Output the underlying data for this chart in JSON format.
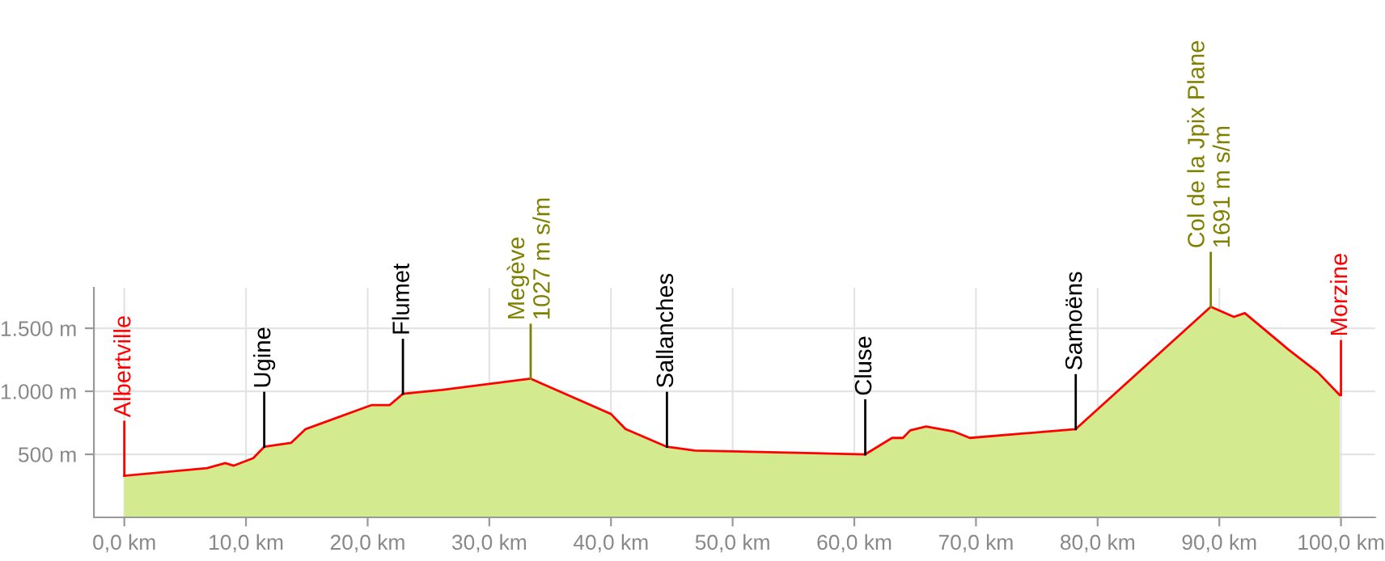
{
  "chart_data": {
    "type": "area",
    "x": [
      0,
      6.8,
      8.3,
      9.0,
      10.6,
      11.5,
      13.7,
      14.9,
      20.3,
      21.8,
      22.9,
      26.1,
      33.4,
      40.0,
      41.2,
      44.6,
      46.9,
      60.9,
      63.1,
      64.0,
      64.6,
      65.9,
      68.2,
      69.5,
      78.2,
      89.3,
      91.2,
      92.1,
      95.7,
      98.1,
      99.9
    ],
    "series": [
      {
        "color": "#d3ea8e",
        "values": [
          330,
          390,
          430,
          410,
          470,
          560,
          590,
          700,
          890,
          890,
          980,
          1010,
          1100,
          820,
          700,
          560,
          530,
          500,
          630,
          630,
          690,
          720,
          680,
          630,
          700,
          1670,
          1590,
          1620,
          1330,
          1150,
          970
        ]
      },
      {
        "type": "line",
        "color": "#ff0000",
        "values": [
          330,
          390,
          430,
          410,
          470,
          560,
          590,
          700,
          890,
          890,
          980,
          1010,
          1100,
          820,
          700,
          560,
          530,
          500,
          630,
          630,
          690,
          720,
          680,
          630,
          700,
          1670,
          1590,
          1620,
          1330,
          1150,
          970
        ]
      }
    ],
    "xlim": [
      -2.5,
      102.8
    ],
    "ylim": [
      0,
      1820
    ],
    "xticks": [
      {
        "value": 0,
        "label": "0,0 km"
      },
      {
        "value": 10,
        "label": "10,0 km"
      },
      {
        "value": 20,
        "label": "20,0 km"
      },
      {
        "value": 30,
        "label": "30,0 km"
      },
      {
        "value": 40,
        "label": "40,0 km"
      },
      {
        "value": 50,
        "label": "50,0 km"
      },
      {
        "value": 60,
        "label": "60,0 km"
      },
      {
        "value": 70,
        "label": "70,0 km"
      },
      {
        "value": 80,
        "label": "80,0 km"
      },
      {
        "value": 90,
        "label": "90,0 km"
      },
      {
        "value": 100,
        "label": "100,0 km"
      }
    ],
    "yticks": [
      {
        "value": 500,
        "label": "500 m"
      },
      {
        "value": 1000,
        "label": "1.000 m"
      },
      {
        "value": 1500,
        "label": "1.500 m"
      }
    ],
    "grid": true,
    "ref_lines": [
      {
        "axis": "x",
        "value": 0,
        "label": "Albertville",
        "color": "#ff0000"
      },
      {
        "axis": "x",
        "value": 11.5,
        "label": "Ugine",
        "color": "#000000"
      },
      {
        "axis": "x",
        "value": 22.9,
        "label": "Flumet",
        "color": "#000000"
      },
      {
        "axis": "x",
        "value": 33.4,
        "label": "Megève\n1027 m s/m",
        "color": "#808000"
      },
      {
        "axis": "x",
        "value": 44.6,
        "label": "Sallanches",
        "color": "#000000"
      },
      {
        "axis": "x",
        "value": 60.9,
        "label": "Cluse",
        "color": "#000000"
      },
      {
        "axis": "x",
        "value": 78.2,
        "label": "Samoëns",
        "color": "#000000"
      },
      {
        "axis": "x",
        "value": 89.3,
        "label": "Col de la Jpix Plane\n1691 m s/m",
        "color": "#808000"
      },
      {
        "axis": "x",
        "value": 100,
        "label": "Morzine",
        "color": "#ff0000"
      }
    ]
  }
}
